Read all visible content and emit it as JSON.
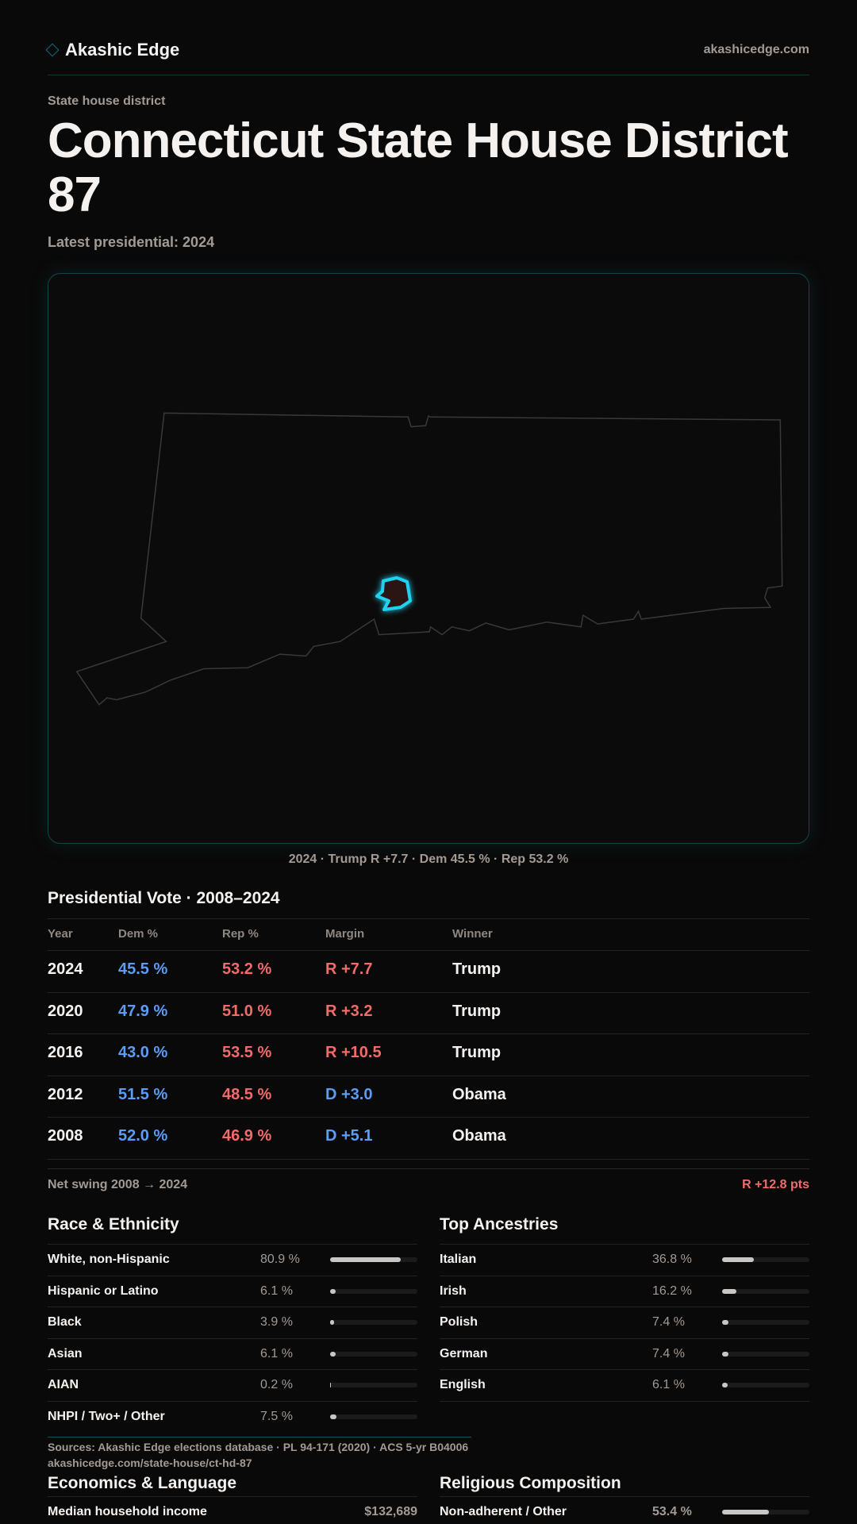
{
  "header": {
    "brand": "Akashic Edge",
    "site": "akashicedge.com",
    "logo_icon": "diamond-icon"
  },
  "page": {
    "kicker": "State house district",
    "title": "Connecticut State House District 87",
    "latest": "Latest presidential: 2024"
  },
  "map": {
    "caption": "2024 · Trump R +7.7 · Dem 45.5 % · Rep 53.2 %",
    "highlight_color": "#1fd3f0"
  },
  "colors": {
    "dem": "#5b9cf5",
    "rep": "#f26b6b",
    "accent": "#0f6f7d"
  },
  "votes": {
    "title": "Presidential Vote · 2008–2024",
    "headers": [
      "Year",
      "Dem %",
      "Rep %",
      "Margin",
      "Winner"
    ],
    "rows": [
      {
        "year": "2024",
        "dem": "45.5 %",
        "rep": "53.2 %",
        "margin": "R +7.7",
        "party": "rep",
        "winner": "Trump"
      },
      {
        "year": "2020",
        "dem": "47.9 %",
        "rep": "51.0 %",
        "margin": "R +3.2",
        "party": "rep",
        "winner": "Trump"
      },
      {
        "year": "2016",
        "dem": "43.0 %",
        "rep": "53.5 %",
        "margin": "R +10.5",
        "party": "rep",
        "winner": "Trump"
      },
      {
        "year": "2012",
        "dem": "51.5 %",
        "rep": "48.5 %",
        "margin": "D +3.0",
        "party": "dem",
        "winner": "Obama"
      },
      {
        "year": "2008",
        "dem": "52.0 %",
        "rep": "46.9 %",
        "margin": "D +5.1",
        "party": "dem",
        "winner": "Obama"
      }
    ],
    "swing_label": "Net swing 2008 → 2024",
    "swing_value": "R +12.8 pts"
  },
  "race": {
    "title": "Race & Ethnicity",
    "rows": [
      {
        "label": "White, non-Hispanic",
        "value": "80.9 %",
        "pct": 80.9
      },
      {
        "label": "Hispanic or Latino",
        "value": "6.1 %",
        "pct": 6.1
      },
      {
        "label": "Black",
        "value": "3.9 %",
        "pct": 3.9
      },
      {
        "label": "Asian",
        "value": "6.1 %",
        "pct": 6.1
      },
      {
        "label": "AIAN",
        "value": "0.2 %",
        "pct": 0.2
      },
      {
        "label": "NHPI / Two+ / Other",
        "value": "7.5 %",
        "pct": 7.5
      }
    ]
  },
  "ancestry": {
    "title": "Top Ancestries",
    "rows": [
      {
        "label": "Italian",
        "value": "36.8 %",
        "pct": 36.8
      },
      {
        "label": "Irish",
        "value": "16.2 %",
        "pct": 16.2
      },
      {
        "label": "Polish",
        "value": "7.4 %",
        "pct": 7.4
      },
      {
        "label": "German",
        "value": "7.4 %",
        "pct": 7.4
      },
      {
        "label": "English",
        "value": "6.1 %",
        "pct": 6.1
      }
    ]
  },
  "footer": {
    "sources": "Sources: Akashic Edge elections database · PL 94-171 (2020) · ACS 5-yr B04006",
    "url": "akashicedge.com/state-house/ct-hd-87"
  },
  "economics": {
    "title": "Economics & Language",
    "rows": [
      {
        "label": "Median household income",
        "value": "$132,689"
      }
    ]
  },
  "religion": {
    "title": "Religious Composition",
    "rows": [
      {
        "label": "Non-adherent / Other",
        "value": "53.4 %",
        "pct": 53.4
      }
    ]
  }
}
